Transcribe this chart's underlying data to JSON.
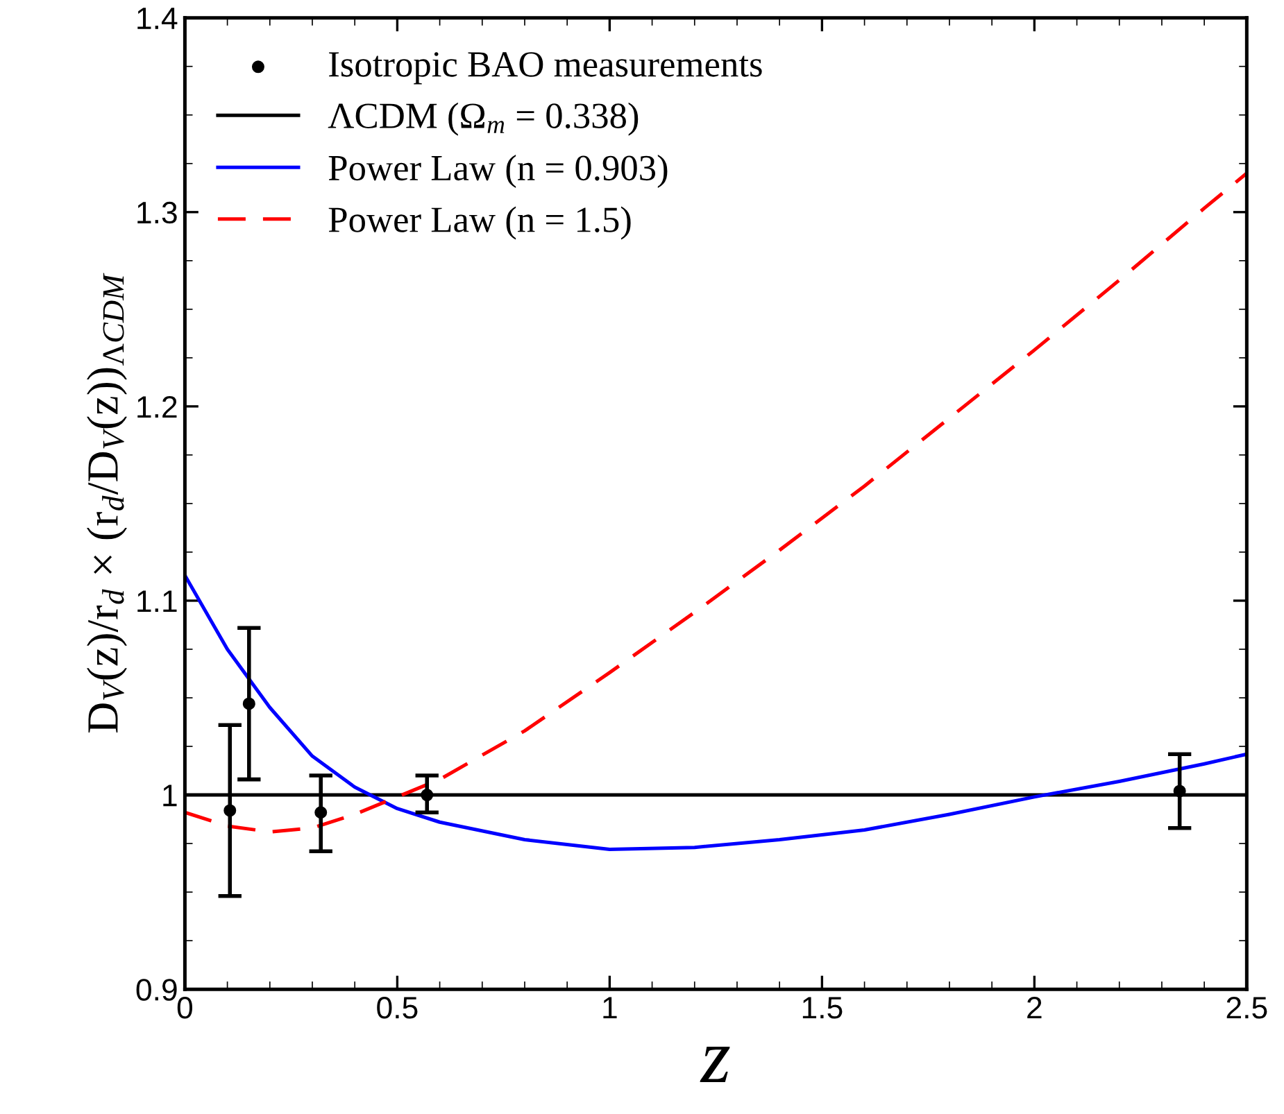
{
  "chart_data": {
    "type": "line",
    "xlabel": "z",
    "ylabel": "D$_{V}$(z)/r$_{d}$ × (r$_{d}$/D$_{V}$(z))$_{ΛCDM}$",
    "xlim": [
      0,
      2.5
    ],
    "ylim": [
      0.9,
      1.4
    ],
    "xticks": [
      0,
      0.5,
      1,
      1.5,
      2,
      2.5
    ],
    "yticks": [
      0.9,
      1,
      1.1,
      1.2,
      1.3,
      1.4
    ],
    "grid": false,
    "legend": "top left",
    "series": [
      {
        "name": "Isotropic BAO measurements",
        "type": "scatter",
        "color": "#000000",
        "marker": "circle",
        "x": [
          0.106,
          0.151,
          0.32,
          0.57,
          2.342
        ],
        "values": [
          0.992,
          1.047,
          0.991,
          1.0,
          1.002
        ],
        "errors": [
          [
            0.948,
            1.036
          ],
          [
            1.008,
            1.086
          ],
          [
            0.971,
            1.01
          ],
          [
            0.991,
            1.01
          ],
          [
            0.983,
            1.021
          ]
        ]
      },
      {
        "name": "ΛCDM (Ω$_{m}$ = 0.338)",
        "color": "#000000",
        "line_style": "solid",
        "x": [
          0,
          2.5
        ],
        "values": [
          1.0,
          1.0
        ]
      },
      {
        "name": "Power Law (n = 0.903)",
        "color": "#0000ff",
        "line_style": "solid",
        "x": [
          0,
          0.1,
          0.2,
          0.3,
          0.4,
          0.5,
          0.6,
          0.8,
          1.0,
          1.2,
          1.4,
          1.6,
          1.8,
          2.0,
          2.2,
          2.4,
          2.5
        ],
        "values": [
          1.113,
          1.075,
          1.045,
          1.02,
          1.004,
          0.993,
          0.986,
          0.977,
          0.972,
          0.973,
          0.977,
          0.982,
          0.99,
          0.999,
          1.007,
          1.016,
          1.021
        ]
      },
      {
        "name": "Power Law (n = 1.5)",
        "color": "#ff0000",
        "line_style": "dashed",
        "x": [
          0,
          0.1,
          0.2,
          0.3,
          0.4,
          0.5,
          0.6,
          0.8,
          1.0,
          1.2,
          1.4,
          1.6,
          1.8,
          2.0,
          2.2,
          2.4,
          2.5
        ],
        "values": [
          0.991,
          0.984,
          0.981,
          0.983,
          0.99,
          0.999,
          1.008,
          1.033,
          1.063,
          1.094,
          1.126,
          1.159,
          1.194,
          1.229,
          1.265,
          1.302,
          1.32
        ]
      }
    ]
  }
}
